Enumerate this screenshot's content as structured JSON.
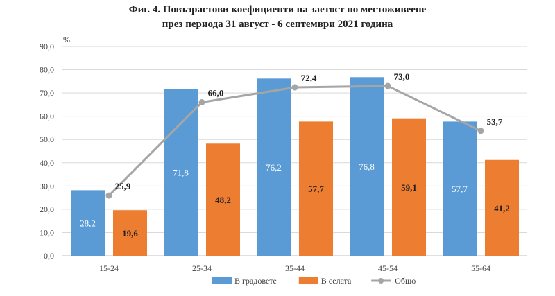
{
  "title_line1": "Фиг. 4. Повъзрастови коефициенти на заетост по местоживеене",
  "title_line2": "през периода 31 август - 6 септември 2021 година",
  "chart_data": {
    "type": "bar",
    "title": "Фиг. 4. Повъзрастови коефициенти на заетост по местоживеене през периода 31 август - 6 септември 2021 година",
    "ylabel": "%",
    "ylim": [
      0,
      90
    ],
    "yticks": [
      "0,0",
      "10,0",
      "20,0",
      "30,0",
      "40,0",
      "50,0",
      "60,0",
      "70,0",
      "80,0",
      "90,0"
    ],
    "grid": true,
    "legend_position": "bottom",
    "categories": [
      "15-24",
      "25-34",
      "35-44",
      "45-54",
      "55-64"
    ],
    "series": [
      {
        "name": "В градовете",
        "kind": "bar",
        "color": "#5B9BD5",
        "values": [
          28.2,
          71.8,
          76.2,
          76.8,
          57.7
        ],
        "labels": [
          "28,2",
          "71,8",
          "76,2",
          "76,8",
          "57,7"
        ]
      },
      {
        "name": "В селата",
        "kind": "bar",
        "color": "#ED7D31",
        "values": [
          19.6,
          48.2,
          57.7,
          59.1,
          41.2
        ],
        "labels": [
          "19,6",
          "48,2",
          "57,7",
          "59,1",
          "41,2"
        ]
      },
      {
        "name": "Общо",
        "kind": "line",
        "color": "#A5A5A5",
        "values": [
          25.9,
          66.0,
          72.4,
          73.0,
          53.7
        ],
        "labels": [
          "25,9",
          "66,0",
          "72,4",
          "73,0",
          "53,7"
        ]
      }
    ]
  }
}
